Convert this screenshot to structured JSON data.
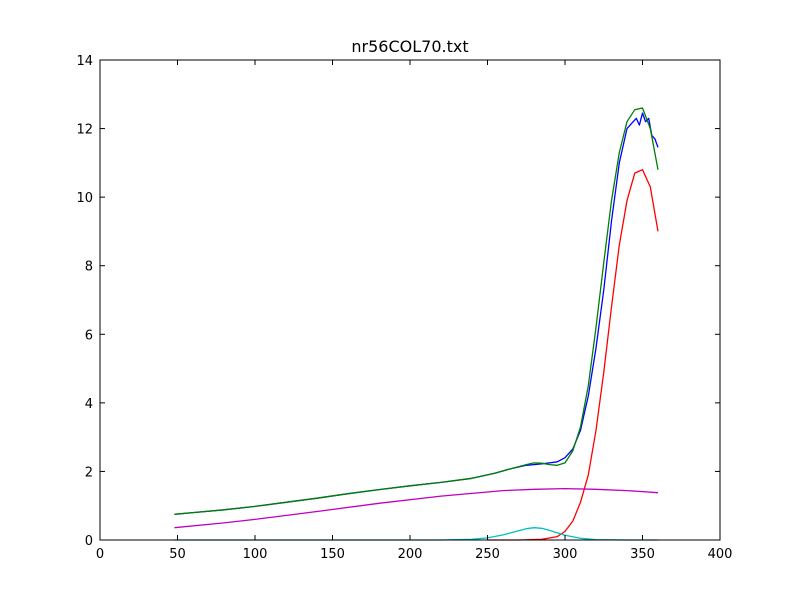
{
  "chart_data": {
    "type": "line",
    "title": "nr56COL70.txt",
    "xlabel": "",
    "ylabel": "",
    "xlim": [
      0,
      400
    ],
    "ylim": [
      0,
      14
    ],
    "x_ticks": [
      0,
      50,
      100,
      150,
      200,
      250,
      300,
      350,
      400
    ],
    "y_ticks": [
      0,
      2,
      4,
      6,
      8,
      10,
      12,
      14
    ],
    "grid": false,
    "legend": "none",
    "series": [
      {
        "color": "#0000ff",
        "x": [
          48,
          60,
          80,
          100,
          120,
          140,
          160,
          180,
          200,
          220,
          240,
          255,
          265,
          275,
          285,
          295,
          300,
          305,
          310,
          315,
          320,
          325,
          330,
          335,
          340,
          343,
          346,
          348,
          350,
          352,
          354,
          356,
          358,
          360
        ],
        "y": [
          0.75,
          0.8,
          0.88,
          0.98,
          1.1,
          1.22,
          1.35,
          1.47,
          1.58,
          1.68,
          1.8,
          1.95,
          2.08,
          2.18,
          2.22,
          2.28,
          2.4,
          2.65,
          3.2,
          4.2,
          5.6,
          7.3,
          9.3,
          11.0,
          12.0,
          12.15,
          12.3,
          12.1,
          12.45,
          12.2,
          12.3,
          11.8,
          11.7,
          11.45
        ]
      },
      {
        "color": "#008000",
        "x": [
          48,
          60,
          80,
          100,
          120,
          140,
          160,
          180,
          200,
          220,
          240,
          255,
          265,
          275,
          280,
          285,
          290,
          295,
          300,
          305,
          310,
          315,
          320,
          325,
          330,
          335,
          340,
          345,
          350,
          355,
          360
        ],
        "y": [
          0.75,
          0.8,
          0.88,
          0.98,
          1.1,
          1.22,
          1.35,
          1.47,
          1.58,
          1.68,
          1.8,
          1.95,
          2.08,
          2.2,
          2.25,
          2.24,
          2.2,
          2.18,
          2.25,
          2.6,
          3.3,
          4.5,
          6.2,
          8.1,
          9.9,
          11.3,
          12.2,
          12.55,
          12.6,
          12.0,
          10.8
        ]
      },
      {
        "color": "#ff0000",
        "x": [
          250,
          270,
          285,
          295,
          300,
          305,
          310,
          315,
          320,
          325,
          330,
          335,
          340,
          345,
          350,
          355,
          360
        ],
        "y": [
          0,
          0,
          0.02,
          0.1,
          0.25,
          0.55,
          1.1,
          1.9,
          3.2,
          4.9,
          6.8,
          8.6,
          9.9,
          10.7,
          10.8,
          10.3,
          9.0
        ]
      },
      {
        "color": "#bf00bf",
        "x": [
          48,
          80,
          100,
          140,
          180,
          220,
          260,
          280,
          300,
          320,
          340,
          360
        ],
        "y": [
          0.36,
          0.5,
          0.6,
          0.83,
          1.07,
          1.28,
          1.44,
          1.48,
          1.5,
          1.48,
          1.44,
          1.38
        ]
      },
      {
        "color": "#00bfbf",
        "x": [
          48,
          220,
          240,
          250,
          260,
          270,
          275,
          280,
          285,
          290,
          300,
          310,
          320,
          340,
          360
        ],
        "y": [
          0,
          0,
          0.02,
          0.06,
          0.15,
          0.27,
          0.33,
          0.36,
          0.34,
          0.28,
          0.14,
          0.05,
          0.01,
          0,
          0
        ]
      }
    ]
  }
}
